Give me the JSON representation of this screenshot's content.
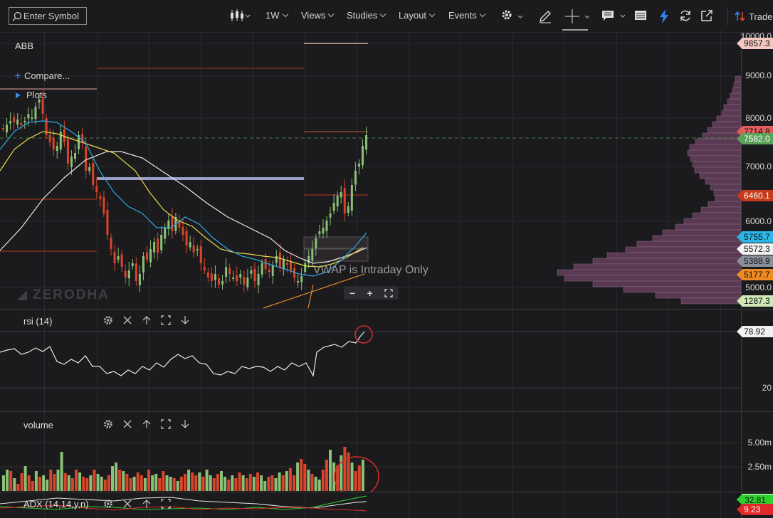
{
  "toolbar": {
    "search_placeholder": "Enter Symbol",
    "interval": "1W",
    "views": "Views",
    "studies": "Studies",
    "layout": "Layout",
    "events": "Events",
    "trade": "Trade"
  },
  "chart": {
    "symbol": "ABB",
    "compare_label": "Compare...",
    "plots_label": "Plots",
    "watermark": "ZERODHA",
    "vwap_notice": "VWAP is Intraday Only",
    "price_axis_ticks": [
      "10000.0",
      "9000.0",
      "8000.0",
      "7000.0",
      "6000.0",
      "5000.0"
    ],
    "price_tags": [
      {
        "label": "9857.3",
        "color": "#f4c7c3"
      },
      {
        "label": "7714.8",
        "color": "#e45b5b"
      },
      {
        "label": "7582.0",
        "color": "#5aa25a"
      },
      {
        "label": "6460.1",
        "color": "#c73b1c"
      },
      {
        "label": "5755.7",
        "color": "#2bb7e8"
      },
      {
        "label": "5572.3",
        "color": "#f2f2f2"
      },
      {
        "label": "5388.9",
        "color": "#8b8f9a"
      },
      {
        "label": "5177.7",
        "color": "#f08b22"
      },
      {
        "label": "1287.3",
        "color": "#cfe8b6"
      }
    ],
    "colors": {
      "up": "#8bc077",
      "down": "#d9452b",
      "ema_fast": "#2ea8e0",
      "ema_mid": "#e8d84a",
      "ema_slow": "#e8e8e8",
      "volume_profile": "#5a3a52"
    }
  },
  "rsi": {
    "label": "rsi (14)",
    "value": "78.92",
    "axis_ticks": [
      "20"
    ]
  },
  "volume": {
    "label": "volume",
    "axis_ticks": [
      "5.00m",
      "2.50m"
    ]
  },
  "adx": {
    "label": "ADX (14,14,y,n)",
    "value_1": "32.81",
    "value_2": "9.23"
  }
}
